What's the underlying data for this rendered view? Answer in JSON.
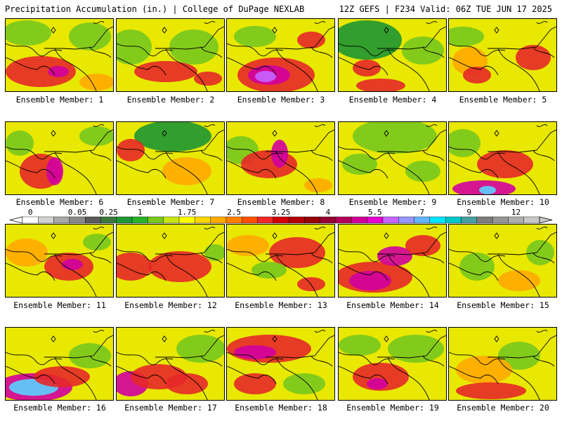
{
  "header": {
    "left": "Precipitation Accumulation (in.) | College of DuPage NEXLAB",
    "right": "12Z GEFS | F234 Valid: 06Z TUE JUN 17 2025"
  },
  "panel_label_prefix": "Ensemble Member: ",
  "members": [
    {
      "id": 1,
      "label": "Ensemble Member: 1"
    },
    {
      "id": 2,
      "label": "Ensemble Member: 2"
    },
    {
      "id": 3,
      "label": "Ensemble Member: 3"
    },
    {
      "id": 4,
      "label": "Ensemble Member: 4"
    },
    {
      "id": 5,
      "label": "Ensemble Member: 5"
    },
    {
      "id": 6,
      "label": "Ensemble Member: 6"
    },
    {
      "id": 7,
      "label": "Ensemble Member: 7"
    },
    {
      "id": 8,
      "label": "Ensemble Member: 8"
    },
    {
      "id": 9,
      "label": "Ensemble Member: 9"
    },
    {
      "id": 10,
      "label": "Ensemble Member: 10"
    },
    {
      "id": 11,
      "label": "Ensemble Member: 11"
    },
    {
      "id": 12,
      "label": "Ensemble Member: 12"
    },
    {
      "id": 13,
      "label": "Ensemble Member: 13"
    },
    {
      "id": 14,
      "label": "Ensemble Member: 14"
    },
    {
      "id": 15,
      "label": "Ensemble Member: 15"
    },
    {
      "id": 16,
      "label": "Ensemble Member: 16"
    },
    {
      "id": 17,
      "label": "Ensemble Member: 17"
    },
    {
      "id": 18,
      "label": "Ensemble Member: 18"
    },
    {
      "id": 19,
      "label": "Ensemble Member: 19"
    },
    {
      "id": 20,
      "label": "Ensemble Member: 20"
    }
  ],
  "colorbar": {
    "tick_labels": [
      "0",
      "0.05",
      "0.25",
      "1",
      "1.75",
      "2.5",
      "3.25",
      "4",
      "5.5",
      "7",
      "9",
      "12"
    ],
    "colors": [
      "#ffffff",
      "#d2d2d2",
      "#a8a8a8",
      "#8a8a8a",
      "#5a5a5a",
      "#3c783c",
      "#1e9632",
      "#28b428",
      "#78c81e",
      "#c8e614",
      "#ffff00",
      "#ffd700",
      "#ffaa00",
      "#ff8000",
      "#ff5000",
      "#f02828",
      "#d20000",
      "#b40000",
      "#960000",
      "#960032",
      "#b4005a",
      "#d20096",
      "#e600d2",
      "#c864ff",
      "#9696ff",
      "#64b4ff",
      "#00e6ff",
      "#00c8c8",
      "#46a0a0",
      "#7d7d7d",
      "#969696",
      "#afafaf",
      "#c8c8c8"
    ]
  }
}
